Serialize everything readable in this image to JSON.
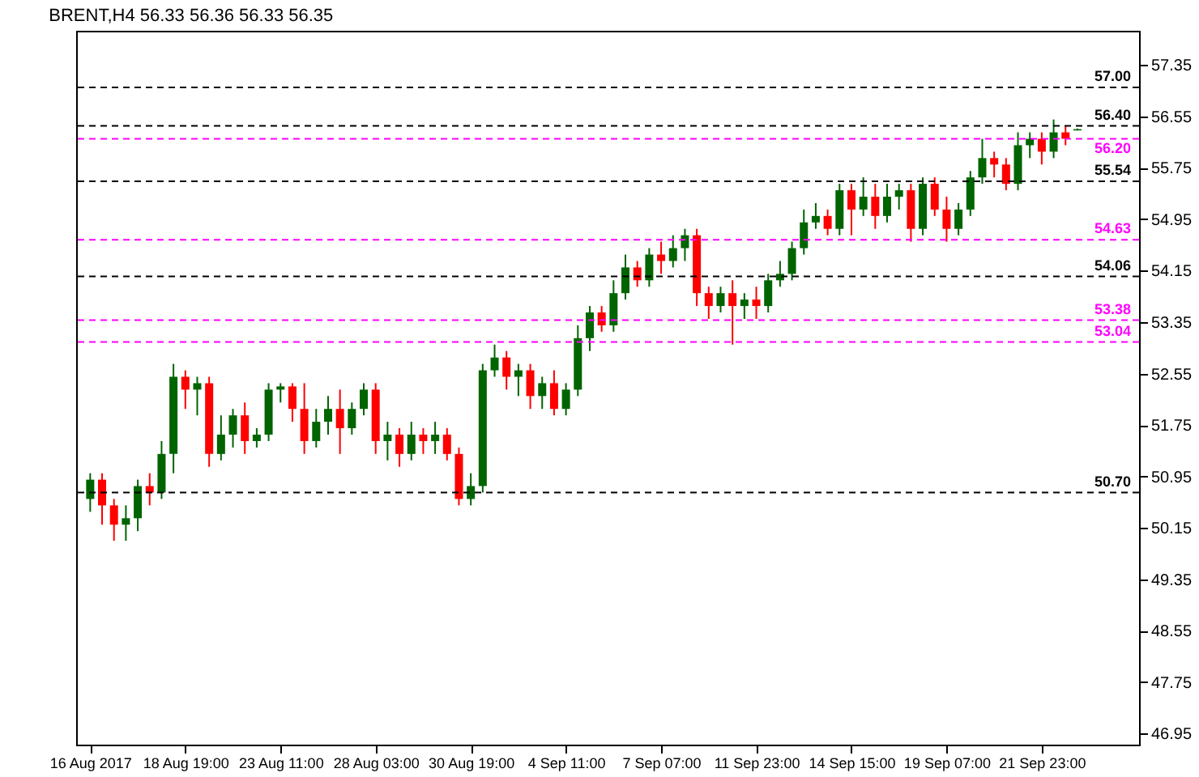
{
  "chart_data": {
    "type": "candlestick",
    "title": "BRENT,H4  56.33 56.36 56.33 56.35",
    "categories": [
      "16 Aug 2017",
      null,
      null,
      null,
      null,
      null,
      null,
      null,
      "18 Aug 19:00",
      null,
      null,
      null,
      null,
      null,
      null,
      null,
      "23 Aug 11:00",
      null,
      null,
      null,
      null,
      null,
      null,
      null,
      "28 Aug 03:00",
      null,
      null,
      null,
      null,
      null,
      null,
      null,
      "30 Aug 19:00",
      null,
      null,
      null,
      null,
      null,
      null,
      null,
      "4 Sep 11:00",
      null,
      null,
      null,
      null,
      null,
      null,
      null,
      "7 Sep 07:00",
      null,
      null,
      null,
      null,
      null,
      null,
      null,
      "11 Sep 23:00",
      null,
      null,
      null,
      null,
      null,
      null,
      null,
      "14 Sep 15:00",
      null,
      null,
      null,
      null,
      null,
      null,
      null,
      "19 Sep 07:00",
      null,
      null,
      null,
      null,
      null,
      null,
      null,
      "21 Sep 23:00",
      null,
      null,
      null,
      null,
      null,
      null,
      null
    ],
    "ohlc": [
      [
        50.6,
        51.0,
        50.4,
        50.9
      ],
      [
        50.9,
        51.0,
        50.2,
        50.5
      ],
      [
        50.5,
        50.6,
        49.95,
        50.2
      ],
      [
        50.2,
        50.5,
        49.95,
        50.3
      ],
      [
        50.3,
        50.9,
        50.1,
        50.8
      ],
      [
        50.8,
        51.0,
        50.5,
        50.7
      ],
      [
        50.7,
        51.5,
        50.6,
        51.3
      ],
      [
        51.3,
        52.7,
        51.0,
        52.5
      ],
      [
        52.5,
        52.6,
        52.0,
        52.3
      ],
      [
        52.3,
        52.5,
        51.9,
        52.4
      ],
      [
        52.4,
        52.5,
        51.1,
        51.3
      ],
      [
        51.3,
        51.9,
        51.2,
        51.6
      ],
      [
        51.6,
        52.0,
        51.4,
        51.9
      ],
      [
        51.9,
        52.1,
        51.3,
        51.5
      ],
      [
        51.5,
        51.7,
        51.4,
        51.6
      ],
      [
        51.6,
        52.4,
        51.5,
        52.3
      ],
      [
        52.3,
        52.4,
        52.1,
        52.35
      ],
      [
        52.35,
        52.4,
        51.8,
        52.0
      ],
      [
        52.0,
        52.4,
        51.3,
        51.5
      ],
      [
        51.5,
        52.0,
        51.4,
        51.8
      ],
      [
        51.8,
        52.2,
        51.6,
        52.0
      ],
      [
        52.0,
        52.3,
        51.3,
        51.7
      ],
      [
        51.7,
        52.1,
        51.6,
        52.0
      ],
      [
        52.0,
        52.4,
        51.9,
        52.3
      ],
      [
        52.3,
        52.4,
        51.3,
        51.5
      ],
      [
        51.5,
        51.8,
        51.2,
        51.6
      ],
      [
        51.6,
        51.7,
        51.1,
        51.3
      ],
      [
        51.3,
        51.8,
        51.2,
        51.6
      ],
      [
        51.6,
        51.7,
        51.3,
        51.5
      ],
      [
        51.5,
        51.8,
        51.3,
        51.6
      ],
      [
        51.6,
        51.7,
        51.2,
        51.3
      ],
      [
        51.3,
        51.4,
        50.5,
        50.6
      ],
      [
        50.6,
        51.0,
        50.5,
        50.8
      ],
      [
        50.8,
        52.7,
        50.7,
        52.6
      ],
      [
        52.6,
        53.0,
        52.5,
        52.8
      ],
      [
        52.8,
        52.9,
        52.3,
        52.5
      ],
      [
        52.5,
        52.7,
        52.2,
        52.6
      ],
      [
        52.6,
        52.7,
        52.0,
        52.2
      ],
      [
        52.2,
        52.5,
        52.0,
        52.4
      ],
      [
        52.4,
        52.6,
        51.9,
        52.0
      ],
      [
        52.0,
        52.4,
        51.9,
        52.3
      ],
      [
        52.3,
        53.3,
        52.2,
        53.1
      ],
      [
        53.1,
        53.6,
        52.9,
        53.5
      ],
      [
        53.5,
        53.6,
        53.2,
        53.3
      ],
      [
        53.3,
        54.0,
        53.2,
        53.8
      ],
      [
        53.8,
        54.4,
        53.7,
        54.2
      ],
      [
        54.2,
        54.3,
        53.9,
        54.0
      ],
      [
        54.0,
        54.5,
        53.9,
        54.4
      ],
      [
        54.4,
        54.6,
        54.1,
        54.3
      ],
      [
        54.3,
        54.7,
        54.2,
        54.5
      ],
      [
        54.5,
        54.8,
        54.3,
        54.7
      ],
      [
        54.7,
        54.8,
        53.6,
        53.8
      ],
      [
        53.8,
        53.9,
        53.4,
        53.6
      ],
      [
        53.6,
        53.9,
        53.5,
        53.8
      ],
      [
        53.8,
        54.0,
        53.0,
        53.6
      ],
      [
        53.6,
        53.8,
        53.4,
        53.7
      ],
      [
        53.7,
        53.9,
        53.4,
        53.6
      ],
      [
        53.6,
        54.1,
        53.5,
        54.0
      ],
      [
        54.0,
        54.3,
        53.9,
        54.1
      ],
      [
        54.1,
        54.6,
        54.0,
        54.5
      ],
      [
        54.5,
        55.1,
        54.4,
        54.9
      ],
      [
        54.9,
        55.2,
        54.8,
        55.0
      ],
      [
        55.0,
        55.1,
        54.7,
        54.8
      ],
      [
        54.8,
        55.5,
        54.7,
        55.4
      ],
      [
        55.4,
        55.5,
        54.7,
        55.1
      ],
      [
        55.1,
        55.6,
        55.0,
        55.3
      ],
      [
        55.3,
        55.5,
        54.8,
        55.0
      ],
      [
        55.0,
        55.5,
        54.9,
        55.3
      ],
      [
        55.3,
        55.5,
        55.1,
        55.4
      ],
      [
        55.4,
        55.5,
        54.6,
        54.8
      ],
      [
        54.8,
        55.6,
        54.7,
        55.5
      ],
      [
        55.5,
        55.6,
        55.0,
        55.1
      ],
      [
        55.1,
        55.3,
        54.6,
        54.8
      ],
      [
        54.8,
        55.2,
        54.7,
        55.1
      ],
      [
        55.1,
        55.7,
        55.0,
        55.6
      ],
      [
        55.6,
        56.2,
        55.5,
        55.9
      ],
      [
        55.9,
        56.0,
        55.6,
        55.8
      ],
      [
        55.8,
        55.9,
        55.4,
        55.5
      ],
      [
        55.5,
        56.3,
        55.4,
        56.1
      ],
      [
        56.1,
        56.3,
        55.9,
        56.2
      ],
      [
        56.2,
        56.3,
        55.8,
        56.0
      ],
      [
        56.0,
        56.5,
        55.9,
        56.3
      ],
      [
        56.3,
        56.4,
        56.1,
        56.2
      ],
      [
        56.33,
        56.36,
        56.33,
        56.35
      ],
      null,
      null,
      null,
      null
    ],
    "colors": [
      "#006400",
      "#ff0000",
      "#ff0000",
      "#006400",
      "#006400",
      "#ff0000",
      "#006400",
      "#006400",
      "#ff0000",
      "#006400",
      "#ff0000",
      "#006400",
      "#006400",
      "#ff0000",
      "#006400",
      "#006400",
      "#006400",
      "#ff0000",
      "#ff0000",
      "#006400",
      "#006400",
      "#ff0000",
      "#006400",
      "#006400",
      "#ff0000",
      "#006400",
      "#ff0000",
      "#006400",
      "#ff0000",
      "#006400",
      "#ff0000",
      "#ff0000",
      "#006400",
      "#006400",
      "#006400",
      "#ff0000",
      "#006400",
      "#ff0000",
      "#006400",
      "#ff0000",
      "#006400",
      "#006400",
      "#006400",
      "#ff0000",
      "#006400",
      "#006400",
      "#ff0000",
      "#006400",
      "#ff0000",
      "#006400",
      "#006400",
      "#ff0000",
      "#ff0000",
      "#006400",
      "#ff0000",
      "#006400",
      "#ff0000",
      "#006400",
      "#006400",
      "#006400",
      "#006400",
      "#006400",
      "#ff0000",
      "#006400",
      "#ff0000",
      "#006400",
      "#ff0000",
      "#006400",
      "#006400",
      "#ff0000",
      "#006400",
      "#ff0000",
      "#ff0000",
      "#006400",
      "#006400",
      "#006400",
      "#ff0000",
      "#ff0000",
      "#006400",
      "#006400",
      "#ff0000",
      "#006400",
      "#ff0000",
      "#006400",
      null,
      null,
      null,
      null
    ],
    "ylim": [
      46.78,
      57.88
    ],
    "yticks": [
      46.95,
      47.75,
      48.55,
      49.35,
      50.15,
      50.95,
      51.75,
      52.55,
      53.35,
      54.15,
      54.95,
      55.75,
      56.55,
      57.35
    ],
    "ref_lines": [
      {
        "axis": "y",
        "value": 57.0,
        "label": "57.00",
        "color": "#000000",
        "line_style": "dashed"
      },
      {
        "axis": "y",
        "value": 56.4,
        "label": "56.40",
        "color": "#000000",
        "line_style": "dashed"
      },
      {
        "axis": "y",
        "value": 56.2,
        "label": "56.20",
        "color": "#ff00ff",
        "line_style": "dashed"
      },
      {
        "axis": "y",
        "value": 55.54,
        "label": "55.54",
        "color": "#000000",
        "line_style": "dashed"
      },
      {
        "axis": "y",
        "value": 54.63,
        "label": "54.63",
        "color": "#ff00ff",
        "line_style": "dashed"
      },
      {
        "axis": "y",
        "value": 54.06,
        "label": "54.06",
        "color": "#000000",
        "line_style": "dashed"
      },
      {
        "axis": "y",
        "value": 53.38,
        "label": "53.38",
        "color": "#ff00ff",
        "line_style": "dashed"
      },
      {
        "axis": "y",
        "value": 53.04,
        "label": "53.04",
        "color": "#ff00ff",
        "line_style": "dashed"
      },
      {
        "axis": "y",
        "value": 50.7,
        "label": "50.70",
        "color": "#000000",
        "line_style": "dashed"
      }
    ],
    "grid": false
  }
}
